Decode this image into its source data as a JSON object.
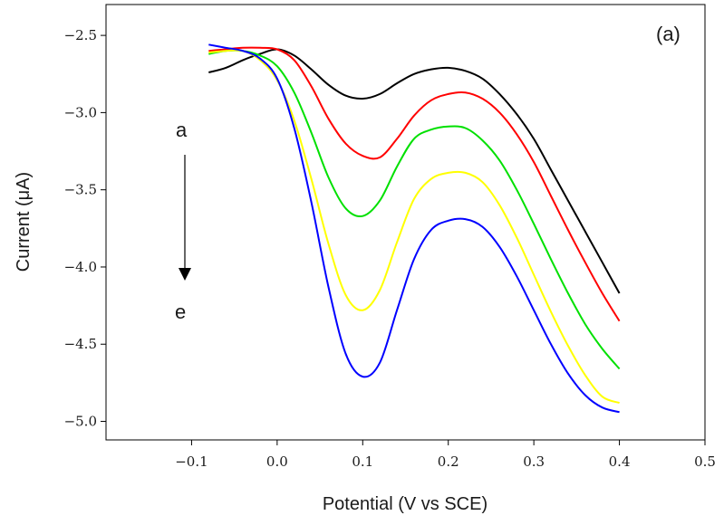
{
  "chart_data": {
    "type": "line",
    "panel_label": "(a)",
    "xlabel": "Potential (V vs SCE)",
    "ylabel": "Current (μA)",
    "xlim": [
      -0.2,
      0.5
    ],
    "ylim": [
      -5.12,
      -2.3
    ],
    "xticks": [
      -0.1,
      0.0,
      0.1,
      0.2,
      0.3,
      0.4,
      0.5
    ],
    "xtick_labels": [
      "−0.1",
      "0.0",
      "0.1",
      "0.2",
      "0.3",
      "0.4",
      "0.5"
    ],
    "yticks": [
      -2.5,
      -3.0,
      -3.5,
      -4.0,
      -4.5,
      -5.0
    ],
    "ytick_labels": [
      "−2.5",
      "−3.0",
      "−3.5",
      "−4.0",
      "−4.5",
      "−5.0"
    ],
    "grid": false,
    "annotations": {
      "arrow_start": "a",
      "arrow_end": "e"
    },
    "series": [
      {
        "color": "#000000",
        "x": [
          -0.08,
          -0.06,
          -0.04,
          -0.02,
          0.0,
          0.02,
          0.04,
          0.06,
          0.08,
          0.1,
          0.12,
          0.14,
          0.16,
          0.18,
          0.2,
          0.22,
          0.24,
          0.26,
          0.28,
          0.3,
          0.32,
          0.34,
          0.36,
          0.38,
          0.4
        ],
        "y": [
          -2.74,
          -2.71,
          -2.66,
          -2.62,
          -2.59,
          -2.63,
          -2.72,
          -2.82,
          -2.89,
          -2.91,
          -2.88,
          -2.81,
          -2.75,
          -2.72,
          -2.71,
          -2.73,
          -2.78,
          -2.88,
          -3.01,
          -3.17,
          -3.37,
          -3.57,
          -3.77,
          -3.97,
          -4.17
        ]
      },
      {
        "color": "#ff0000",
        "x": [
          -0.08,
          -0.06,
          -0.04,
          -0.02,
          0.0,
          0.02,
          0.04,
          0.06,
          0.08,
          0.1,
          0.12,
          0.14,
          0.16,
          0.18,
          0.2,
          0.22,
          0.24,
          0.26,
          0.28,
          0.3,
          0.32,
          0.34,
          0.36,
          0.38,
          0.4
        ],
        "y": [
          -2.6,
          -2.59,
          -2.58,
          -2.58,
          -2.59,
          -2.66,
          -2.83,
          -3.04,
          -3.2,
          -3.28,
          -3.29,
          -3.17,
          -3.02,
          -2.92,
          -2.88,
          -2.87,
          -2.91,
          -3.0,
          -3.14,
          -3.32,
          -3.54,
          -3.76,
          -3.97,
          -4.17,
          -4.35
        ]
      },
      {
        "color": "#00e000",
        "x": [
          -0.08,
          -0.06,
          -0.04,
          -0.02,
          0.0,
          0.02,
          0.04,
          0.06,
          0.08,
          0.1,
          0.12,
          0.14,
          0.16,
          0.18,
          0.2,
          0.22,
          0.24,
          0.26,
          0.28,
          0.3,
          0.32,
          0.34,
          0.36,
          0.38,
          0.4
        ],
        "y": [
          -2.62,
          -2.6,
          -2.6,
          -2.63,
          -2.7,
          -2.87,
          -3.13,
          -3.42,
          -3.62,
          -3.67,
          -3.57,
          -3.35,
          -3.17,
          -3.11,
          -3.09,
          -3.1,
          -3.18,
          -3.31,
          -3.5,
          -3.72,
          -3.95,
          -4.17,
          -4.37,
          -4.53,
          -4.66
        ]
      },
      {
        "color": "#ffff00",
        "x": [
          -0.08,
          -0.06,
          -0.04,
          -0.02,
          0.0,
          0.02,
          0.04,
          0.06,
          0.08,
          0.1,
          0.12,
          0.14,
          0.16,
          0.18,
          0.2,
          0.22,
          0.24,
          0.26,
          0.28,
          0.3,
          0.32,
          0.34,
          0.36,
          0.38,
          0.4
        ],
        "y": [
          -2.61,
          -2.6,
          -2.6,
          -2.66,
          -2.79,
          -3.05,
          -3.43,
          -3.85,
          -4.18,
          -4.28,
          -4.15,
          -3.84,
          -3.56,
          -3.43,
          -3.39,
          -3.39,
          -3.45,
          -3.6,
          -3.81,
          -4.05,
          -4.29,
          -4.51,
          -4.7,
          -4.84,
          -4.88
        ]
      },
      {
        "color": "#0000ff",
        "x": [
          -0.08,
          -0.06,
          -0.04,
          -0.02,
          0.0,
          0.02,
          0.04,
          0.06,
          0.08,
          0.1,
          0.12,
          0.14,
          0.16,
          0.18,
          0.2,
          0.22,
          0.24,
          0.26,
          0.28,
          0.3,
          0.32,
          0.34,
          0.36,
          0.38,
          0.4
        ],
        "y": [
          -2.56,
          -2.58,
          -2.6,
          -2.65,
          -2.78,
          -3.1,
          -3.58,
          -4.13,
          -4.56,
          -4.71,
          -4.62,
          -4.28,
          -3.95,
          -3.76,
          -3.7,
          -3.69,
          -3.74,
          -3.87,
          -4.06,
          -4.28,
          -4.5,
          -4.69,
          -4.83,
          -4.91,
          -4.94
        ]
      }
    ]
  }
}
